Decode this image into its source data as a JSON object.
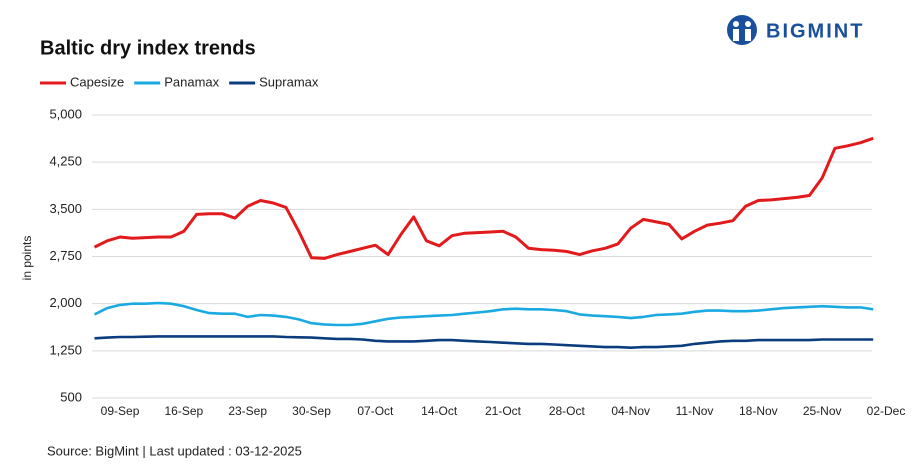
{
  "logo": "BIGMINT",
  "source": "Source: BigMint | Last updated : 03-12-2025",
  "chart_data": {
    "type": "line",
    "title": "Baltic dry index trends",
    "y_label": "in points",
    "categories": [
      null,
      null,
      "09-Sep",
      null,
      null,
      null,
      null,
      "16-Sep",
      null,
      null,
      null,
      null,
      "23-Sep",
      null,
      null,
      null,
      null,
      "30-Sep",
      null,
      null,
      null,
      null,
      "07-Oct",
      null,
      null,
      null,
      null,
      "14-Oct",
      null,
      null,
      null,
      null,
      "21-Oct",
      null,
      null,
      null,
      null,
      "28-Oct",
      null,
      null,
      null,
      null,
      "04-Nov",
      null,
      null,
      null,
      null,
      "11-Nov",
      null,
      null,
      null,
      null,
      "18-Nov",
      null,
      null,
      null,
      null,
      "25-Nov",
      null,
      null,
      null,
      null,
      "02-Dec"
    ],
    "series": [
      {
        "name": "Capesize",
        "color": "#e31a1c",
        "values": [
          2900,
          3000,
          3060,
          3040,
          3050,
          3060,
          3060,
          3150,
          3420,
          3430,
          3430,
          3360,
          3550,
          3640,
          3600,
          3530,
          3150,
          2730,
          2720,
          2780,
          2830,
          2880,
          2930,
          2780,
          3100,
          3380,
          3000,
          2920,
          3080,
          3120,
          3130,
          3140,
          3150,
          3060,
          2880,
          2860,
          2850,
          2830,
          2780,
          2840,
          2880,
          2950,
          3200,
          3340,
          3300,
          3260,
          3030,
          3150,
          3250,
          3280,
          3320,
          3550,
          3640,
          3650,
          3670,
          3690,
          3720,
          4000,
          4470,
          4510,
          4560,
          4630,
          null
        ]
      },
      {
        "name": "Panamax",
        "color": "#1ba9e1",
        "values": [
          1830,
          1930,
          1980,
          2000,
          2000,
          2010,
          2000,
          1960,
          1900,
          1850,
          1840,
          1840,
          1790,
          1820,
          1810,
          1790,
          1750,
          1690,
          1670,
          1660,
          1660,
          1680,
          1720,
          1760,
          1780,
          1790,
          1800,
          1810,
          1820,
          1840,
          1860,
          1880,
          1910,
          1920,
          1910,
          1910,
          1900,
          1880,
          1830,
          1810,
          1800,
          1790,
          1770,
          1790,
          1820,
          1830,
          1840,
          1870,
          1890,
          1890,
          1880,
          1880,
          1890,
          1910,
          1930,
          1940,
          1950,
          1960,
          1950,
          1940,
          1940,
          1910,
          null
        ]
      },
      {
        "name": "Supramax",
        "color": "#0b3d7e",
        "values": [
          1450,
          1460,
          1470,
          1470,
          1475,
          1480,
          1480,
          1480,
          1480,
          1480,
          1480,
          1480,
          1480,
          1480,
          1480,
          1470,
          1465,
          1460,
          1450,
          1440,
          1440,
          1430,
          1410,
          1400,
          1400,
          1400,
          1410,
          1420,
          1420,
          1410,
          1400,
          1390,
          1380,
          1370,
          1360,
          1360,
          1350,
          1340,
          1330,
          1320,
          1310,
          1310,
          1300,
          1310,
          1310,
          1320,
          1330,
          1360,
          1380,
          1400,
          1410,
          1410,
          1420,
          1420,
          1420,
          1420,
          1420,
          1430,
          1430,
          1430,
          1430,
          1430,
          null
        ]
      }
    ],
    "ylim": [
      500,
      5000
    ],
    "yticks": [
      {
        "value": 500,
        "label": "500"
      },
      {
        "value": 1250,
        "label": "1,250"
      },
      {
        "value": 2000,
        "label": "2,000"
      },
      {
        "value": 2750,
        "label": "2,750"
      },
      {
        "value": 3500,
        "label": "3,500"
      },
      {
        "value": 4250,
        "label": "4,250"
      },
      {
        "value": 5000,
        "label": "5,000"
      }
    ],
    "grid": true,
    "legend": "top-left"
  }
}
